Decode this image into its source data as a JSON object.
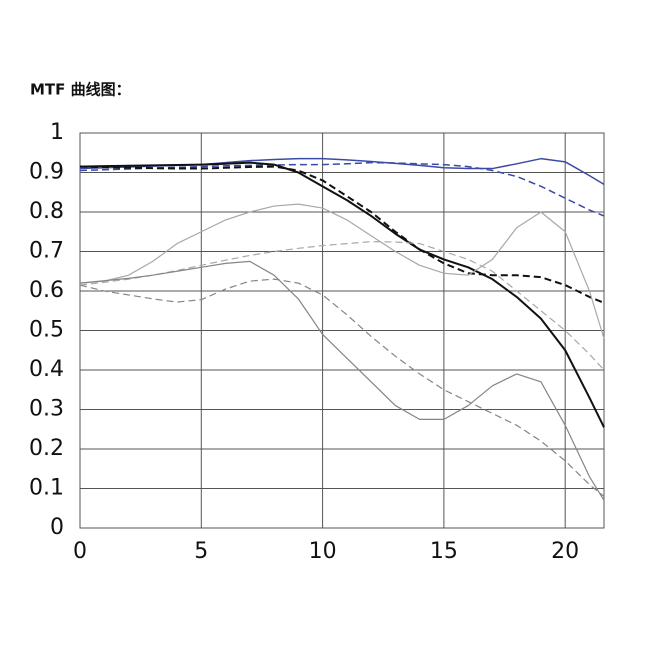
{
  "chart_data": {
    "type": "line",
    "title": "MTF 曲线图：",
    "x": [
      0,
      1,
      2,
      3,
      4,
      5,
      6,
      7,
      8,
      9,
      10,
      11,
      12,
      13,
      14,
      15,
      16,
      17,
      18,
      19,
      20,
      21,
      21.6
    ],
    "xlim": [
      0,
      21.6
    ],
    "xticks": [
      0,
      5,
      10,
      15,
      20
    ],
    "ylim": [
      0,
      1
    ],
    "yticks": [
      0,
      0.1,
      0.2,
      0.3,
      0.4,
      0.5,
      0.6,
      0.7,
      0.8,
      0.9,
      1
    ],
    "grid": true,
    "series": [
      {
        "color": "#3b4aa6",
        "dash": false,
        "width": 1.5,
        "values": [
          0.91,
          0.912,
          0.914,
          0.916,
          0.918,
          0.92,
          0.925,
          0.93,
          0.933,
          0.935,
          0.935,
          0.932,
          0.928,
          0.923,
          0.918,
          0.912,
          0.91,
          0.91,
          0.922,
          0.935,
          0.927,
          0.892,
          0.87
        ]
      },
      {
        "color": "#3b4aa6",
        "dash": true,
        "width": 1.5,
        "values": [
          0.905,
          0.907,
          0.909,
          0.911,
          0.913,
          0.915,
          0.917,
          0.918,
          0.919,
          0.92,
          0.92,
          0.922,
          0.925,
          0.924,
          0.922,
          0.92,
          0.915,
          0.905,
          0.89,
          0.865,
          0.835,
          0.805,
          0.79
        ]
      },
      {
        "color": "#111111",
        "dash": false,
        "width": 2,
        "values": [
          0.915,
          0.916,
          0.917,
          0.918,
          0.919,
          0.92,
          0.922,
          0.925,
          0.92,
          0.9,
          0.865,
          0.83,
          0.79,
          0.745,
          0.705,
          0.68,
          0.66,
          0.63,
          0.585,
          0.53,
          0.45,
          0.33,
          0.255
        ]
      },
      {
        "color": "#111111",
        "dash": true,
        "width": 2,
        "values": [
          0.915,
          0.913,
          0.912,
          0.911,
          0.91,
          0.91,
          0.912,
          0.914,
          0.915,
          0.905,
          0.88,
          0.84,
          0.8,
          0.75,
          0.705,
          0.67,
          0.645,
          0.64,
          0.64,
          0.635,
          0.615,
          0.585,
          0.57
        ]
      },
      {
        "color": "#a8a8a8",
        "dash": false,
        "width": 1.2,
        "values": [
          0.62,
          0.625,
          0.64,
          0.675,
          0.72,
          0.75,
          0.78,
          0.8,
          0.815,
          0.82,
          0.81,
          0.78,
          0.74,
          0.7,
          0.665,
          0.645,
          0.64,
          0.68,
          0.76,
          0.8,
          0.75,
          0.6,
          0.48
        ]
      },
      {
        "color": "#a8a8a8",
        "dash": true,
        "width": 1.2,
        "values": [
          0.615,
          0.622,
          0.63,
          0.64,
          0.652,
          0.665,
          0.678,
          0.69,
          0.7,
          0.708,
          0.715,
          0.72,
          0.725,
          0.724,
          0.72,
          0.7,
          0.68,
          0.65,
          0.6,
          0.55,
          0.5,
          0.44,
          0.4
        ]
      },
      {
        "color": "#858585",
        "dash": false,
        "width": 1.2,
        "values": [
          0.62,
          0.626,
          0.632,
          0.64,
          0.65,
          0.66,
          0.67,
          0.675,
          0.64,
          0.58,
          0.49,
          0.43,
          0.37,
          0.31,
          0.275,
          0.275,
          0.31,
          0.36,
          0.39,
          0.37,
          0.26,
          0.13,
          0.07
        ]
      },
      {
        "color": "#858585",
        "dash": true,
        "width": 1.2,
        "values": [
          0.615,
          0.6,
          0.59,
          0.58,
          0.572,
          0.578,
          0.605,
          0.625,
          0.63,
          0.62,
          0.59,
          0.54,
          0.485,
          0.435,
          0.39,
          0.35,
          0.32,
          0.29,
          0.26,
          0.22,
          0.17,
          0.11,
          0.08
        ]
      }
    ]
  }
}
